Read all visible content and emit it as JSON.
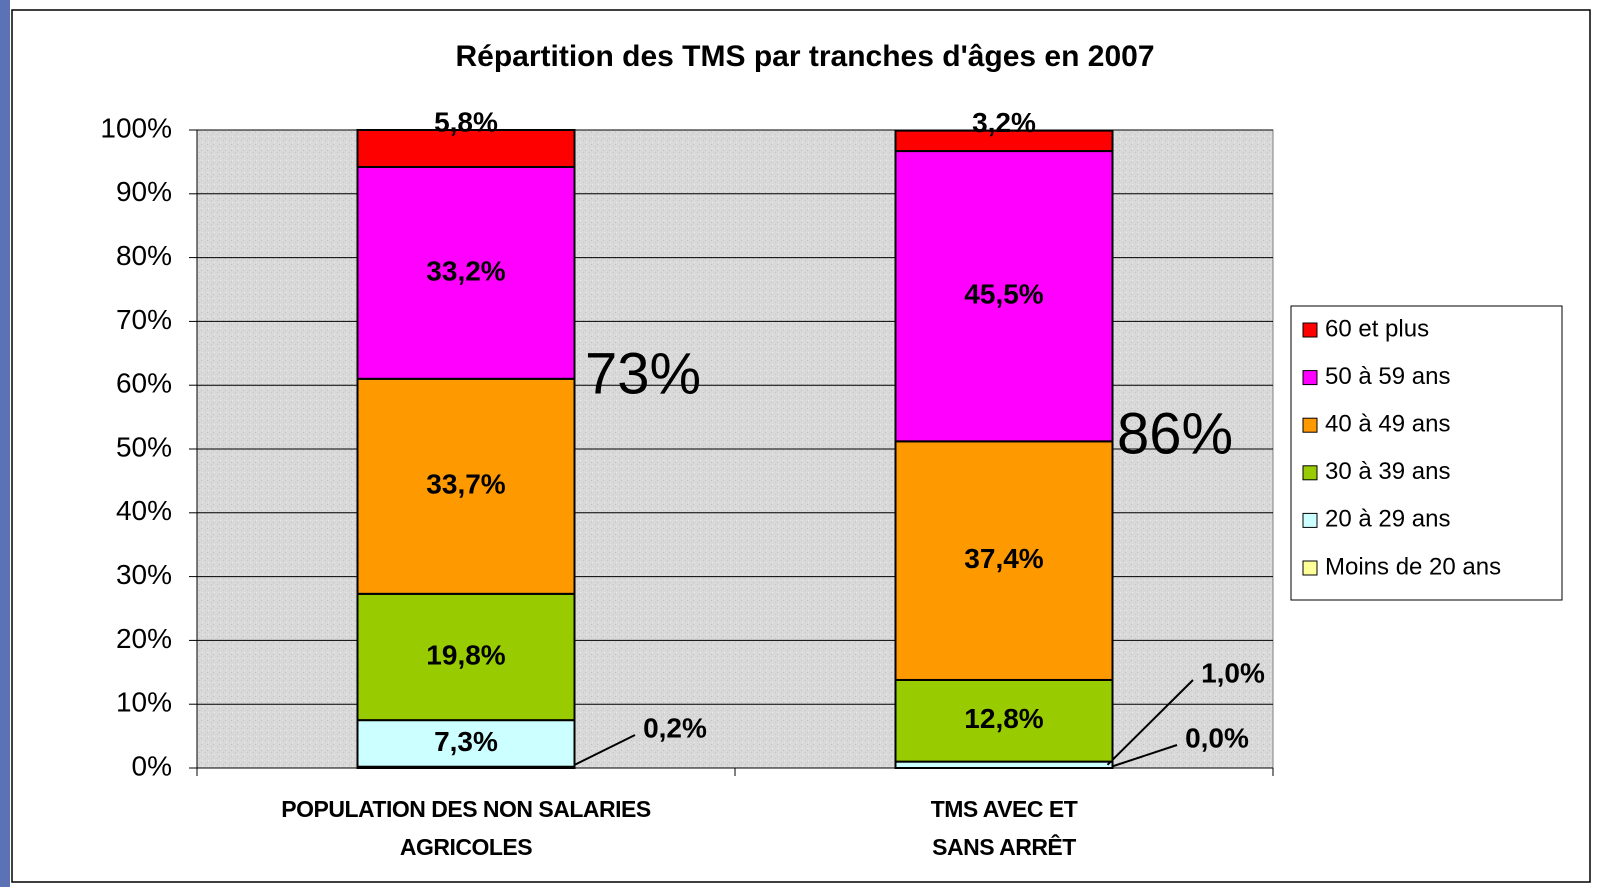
{
  "chart_data": {
    "type": "stacked_bar",
    "title": "Répartition des TMS par tranches d'âges en 2007",
    "categories": [
      "POPULATION DES NON SALARIES\nAGRICOLES",
      "TMS AVEC ET\nSANS ARRÊT"
    ],
    "series": [
      {
        "name": "Moins de 20 ans",
        "color": "#ffff99",
        "values": [
          0.2,
          0.0
        ],
        "value_labels": [
          "0,2%",
          "0,0%"
        ]
      },
      {
        "name": "20 à 29 ans",
        "color": "#ccffff",
        "values": [
          7.3,
          1.0
        ],
        "value_labels": [
          "7,3%",
          "1,0%"
        ]
      },
      {
        "name": "30 à 39 ans",
        "color": "#99cc00",
        "values": [
          19.8,
          12.8
        ],
        "value_labels": [
          "19,8%",
          "12,8%"
        ]
      },
      {
        "name": "40 à 49 ans",
        "color": "#ff9900",
        "values": [
          33.7,
          37.4
        ],
        "value_labels": [
          "33,7%",
          "37,4%"
        ]
      },
      {
        "name": "50 à 59 ans",
        "color": "#ff00ff",
        "values": [
          33.2,
          45.5
        ],
        "value_labels": [
          "33,2%",
          "45,5%"
        ]
      },
      {
        "name": "60 et plus",
        "color": "#ff0000",
        "values": [
          5.8,
          3.2
        ],
        "value_labels": [
          "5,8%",
          "3,2%"
        ]
      }
    ],
    "annotations": [
      "73%",
      "86%"
    ],
    "ylim": [
      0,
      100
    ],
    "yticks": [
      {
        "value": 0,
        "label": "0%"
      },
      {
        "value": 10,
        "label": "10%"
      },
      {
        "value": 20,
        "label": "20%"
      },
      {
        "value": 30,
        "label": "30%"
      },
      {
        "value": 40,
        "label": "40%"
      },
      {
        "value": 50,
        "label": "50%"
      },
      {
        "value": 60,
        "label": "60%"
      },
      {
        "value": 70,
        "label": "70%"
      },
      {
        "value": 80,
        "label": "80%"
      },
      {
        "value": 90,
        "label": "90%"
      },
      {
        "value": 100,
        "label": "100%"
      }
    ],
    "grid": true,
    "legend": "right"
  }
}
